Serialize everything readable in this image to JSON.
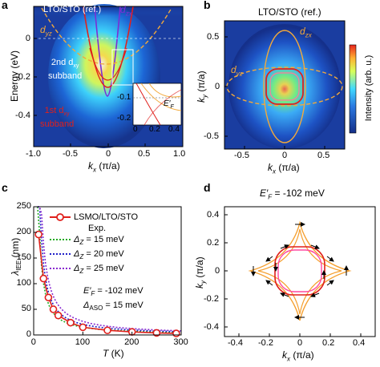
{
  "panels": {
    "a": {
      "label": "a",
      "title": "LTO/STO (ref.)",
      "ylabel": "Energy (eV)",
      "xlabel": "k",
      "xlabel_sub": "x",
      "xlabel_unit": " (π/a)",
      "xticks": [
        "-1.0",
        "-0.5",
        "0",
        "0.5",
        "1.0"
      ],
      "yticks": [
        "0",
        "-0.2",
        "-0.4"
      ],
      "ann_dzx": "d",
      "ann_dzx_sub": "zx",
      "ann_dyz": "d",
      "ann_dyz_sub": "yz",
      "ann_2nd_line1": "2nd d",
      "ann_2nd_sub": "xy",
      "ann_2nd_line2": "subband",
      "ann_1st_line1": "1st d",
      "ann_1st_sub": "xy",
      "ann_1st_line2": "subband",
      "inset": {
        "xticks": [
          "0",
          "0.2",
          "0.4"
        ],
        "yticks": [
          "-0.1",
          "-0.2"
        ],
        "ef_label": "E′",
        "ef_sub": "F"
      }
    },
    "b": {
      "label": "b",
      "title": "LTO/STO (ref.)",
      "ylabel": "k",
      "ylabel_sub": "y",
      "ylabel_unit": " (π/a)",
      "xlabel": "k",
      "xlabel_sub": "x",
      "xlabel_unit": " (π/a)",
      "xticks": [
        "-0.5",
        "0",
        "0.5"
      ],
      "yticks": [
        "0.5",
        "0",
        "-0.5"
      ],
      "ann_dzx": "d",
      "ann_dzx_sub": "zx",
      "ann_dyz": "d",
      "ann_dyz_sub": "yz",
      "colorbar_label": "Intensity (arb. u.)"
    },
    "c": {
      "label": "c",
      "ylabel": "λ",
      "ylabel_sub": "IEE",
      "ylabel_unit": " (nm)",
      "xlabel": "T",
      "xlabel_unit": " (K)",
      "xticks": [
        "0",
        "100",
        "200",
        "300"
      ],
      "yticks": [
        "250",
        "200",
        "150",
        "100",
        "50",
        "0"
      ],
      "legend": {
        "exp_name": "LSMO/LTO/STO",
        "exp_sub": "Exp.",
        "dz15": "= 15 meV",
        "dz20": "= 20 meV",
        "dz25": "= 25 meV",
        "delta_sym": "Δ",
        "delta_sub": "Z"
      },
      "note_line1": "= -102 meV",
      "note_ef": "E′",
      "note_ef_sub": "F",
      "note_line2_sym": "Δ",
      "note_line2_sub": "ASO",
      "note_line2": " = 15 meV"
    },
    "d": {
      "label": "d",
      "title_ef": "E′",
      "title_ef_sub": "F",
      "title_val": " = -102 meV",
      "ylabel": "k",
      "ylabel_sub": "y",
      "ylabel_unit": " (π/a)",
      "xlabel": "k",
      "xlabel_sub": "x",
      "xlabel_unit": " (π/a)",
      "xticks": [
        "-0.4",
        "-0.2",
        "0",
        "0.2",
        "0.4"
      ],
      "yticks": [
        "0.4",
        "0.2",
        "0",
        "-0.2",
        "-0.4"
      ]
    }
  },
  "chart_data": [
    {
      "type": "line",
      "panel": "c",
      "xlim": [
        0,
        300
      ],
      "ylim": [
        0,
        250
      ],
      "series": [
        {
          "name": "LSMO/LTO/STO",
          "kind": "exp",
          "color": "#e0201c",
          "x": [
            10,
            20,
            30,
            40,
            50,
            75,
            100,
            150,
            200,
            250,
            290
          ],
          "y": [
            196,
            110,
            73,
            50,
            38,
            24,
            15,
            9,
            6,
            4,
            3
          ]
        },
        {
          "name": "Δz = 15 meV",
          "kind": "fit",
          "color": "#22aa22",
          "param": 15
        },
        {
          "name": "Δz = 20 meV",
          "kind": "fit",
          "color": "#2020c8",
          "param": 20
        },
        {
          "name": "Δz = 25 meV",
          "kind": "fit",
          "color": "#8a2bd0",
          "param": 25
        }
      ]
    }
  ],
  "colors": {
    "arpes_bg": "#1d3f9e",
    "dzx": "#7b2fd6",
    "dyz": "#f2a93b",
    "dxy": "#e0201c",
    "pink": "#ff4aa0",
    "orange": "#f5a030"
  }
}
